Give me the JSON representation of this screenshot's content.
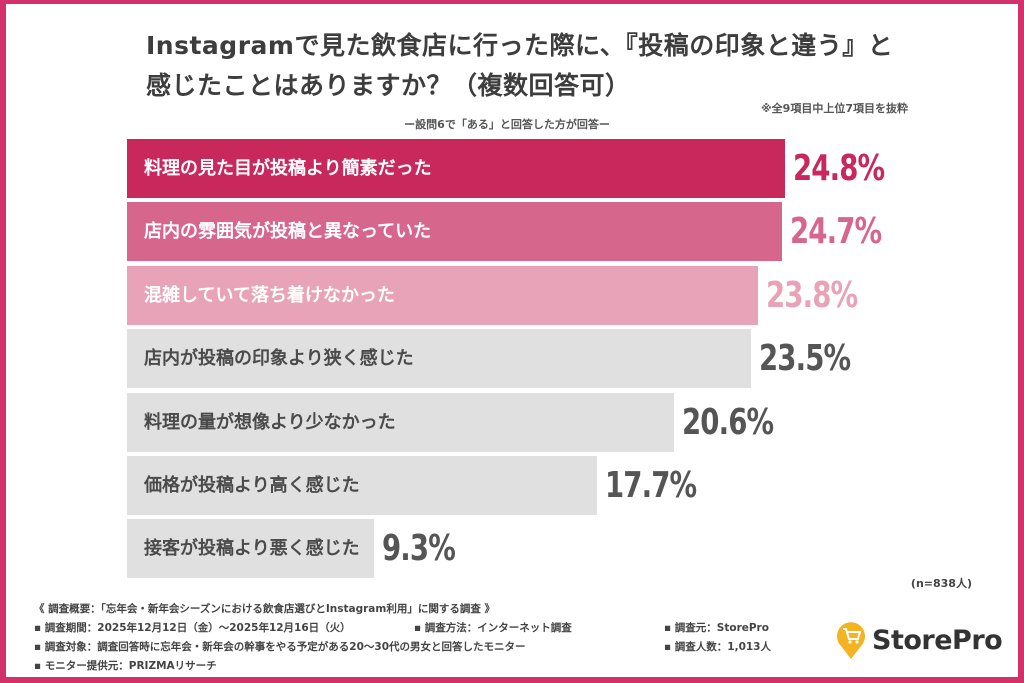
{
  "title_line1": "Instagramで見た飲食店に行った際に、『投稿の印象と違う』と",
  "title_line2": "感じたことはありますか？（複数回答可）",
  "note": "※全9項目中上位7項目を抜粋",
  "subtitle": "ー設問6で「ある」と回答した方が回答ー",
  "chart_data": {
    "type": "bar",
    "orientation": "horizontal",
    "categories": [
      "料理の見た目が投稿より簡素だった",
      "店内の雰囲気が投稿と異なっていた",
      "混雑していて落ち着けなかった",
      "店内が投稿の印象より狭く感じた",
      "料理の量が想像より少なかった",
      "価格が投稿より高く感じた",
      "接客が投稿より悪く感じた"
    ],
    "values": [
      24.8,
      24.7,
      23.8,
      23.5,
      20.6,
      17.7,
      9.3
    ],
    "value_labels": [
      "24.8%",
      "24.7%",
      "23.8%",
      "23.5%",
      "20.6%",
      "17.7%",
      "9.3%"
    ],
    "bar_colors": [
      "#c8285c",
      "#d6668b",
      "#e8a3b8",
      "#e0e0e0",
      "#e0e0e0",
      "#e0e0e0",
      "#e0e0e0"
    ],
    "label_colors": [
      "#ffffff",
      "#ffffff",
      "#ffffff",
      "#4a4a4a",
      "#4a4a4a",
      "#4a4a4a",
      "#4a4a4a"
    ],
    "value_colors": [
      "#c8285c",
      "#d6668b",
      "#e8a3b8",
      "#555555",
      "#555555",
      "#555555",
      "#555555"
    ],
    "grid": false
  },
  "sample": "(n=838人)",
  "footer": {
    "overview": "《 調査概要：「忘年会・新年会シーズンにおける飲食店選びとInstagram利用」に関する調査 》",
    "period": "▪ 調査期間：2025年12月12日（金）〜2025年12月16日（火）",
    "method": "▪ 調査方法：インターネット調査",
    "source": "▪ 調査元：StorePro",
    "target": "▪ 調査対象：調査回答時に忘年会・新年会の幹事をやる予定がある20〜30代の男女と回答したモニター",
    "count": "▪ 調査人数：1,013人",
    "provider": "▪ モニター提供元：PRIZMAリサーチ"
  },
  "logo": {
    "text": "StorePro",
    "icon": "shopping-cart-pin-icon",
    "color": "#f5b324"
  },
  "border_color": "#d2316a"
}
